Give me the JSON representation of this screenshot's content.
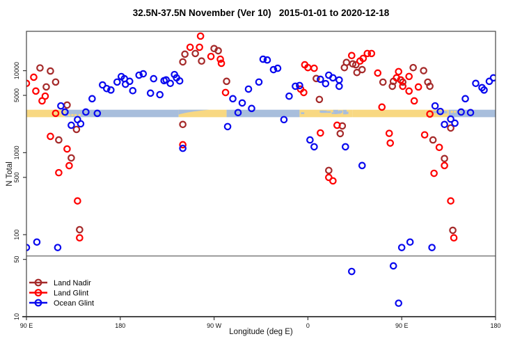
{
  "chart_data": {
    "type": "scatter",
    "title": "32.5N-37.5N November (Ver 10)   2015-01-01 to 2020-12-18",
    "xlabel": "Longitude (deg E)",
    "ylabel": "N Total",
    "x_axis": {
      "min": 90,
      "max": 540,
      "ticks": [
        {
          "value": 90,
          "label": "90 E"
        },
        {
          "value": 180,
          "label": "180"
        },
        {
          "value": 270,
          "label": "90 W"
        },
        {
          "value": 360,
          "label": "0"
        },
        {
          "value": 450,
          "label": "90 E"
        },
        {
          "value": 540,
          "label": "180"
        }
      ]
    },
    "y_axis": {
      "scale": "log",
      "min": 10,
      "max": 30200,
      "ticks": [
        {
          "value": 10,
          "label": "10"
        },
        {
          "value": 50,
          "label": "50"
        },
        {
          "value": 100,
          "label": "100"
        },
        {
          "value": 500,
          "label": "500"
        },
        {
          "value": 1000,
          "label": "1000"
        },
        {
          "value": 5000,
          "label": "5000"
        },
        {
          "value": 10000,
          "label": "10000"
        }
      ]
    },
    "ref_line_value": 55,
    "map_strip": {
      "top_value": 3340,
      "bottom_value": 2710,
      "land_color": "#F8D882",
      "ocean_color": "#A8BEDC",
      "segments": [
        {
          "from": 90,
          "to": 127,
          "type": "land"
        },
        {
          "from": 127,
          "to": 236,
          "type": "ocean"
        },
        {
          "from": 236,
          "to": 282,
          "type": "land",
          "coast_notch": true
        },
        {
          "from": 282,
          "to": 352,
          "type": "ocean"
        },
        {
          "from": 352,
          "to": 403,
          "type": "mixed"
        },
        {
          "from": 403,
          "to": 473,
          "type": "land"
        },
        {
          "from": 473,
          "to": 495,
          "type": "mixed"
        },
        {
          "from": 495,
          "to": 540,
          "type": "ocean"
        }
      ],
      "islands": [
        {
          "deg": 130,
          "row": "bottom"
        },
        {
          "deg": 133,
          "row": "bottom"
        },
        {
          "deg": 136,
          "row": "bottom"
        },
        {
          "deg": 140,
          "row": "bottom"
        },
        {
          "deg": 497,
          "row": "top"
        },
        {
          "deg": 500,
          "row": "top"
        },
        {
          "deg": 504,
          "row": "top"
        }
      ]
    },
    "legend": [
      {
        "name": "Land Nadir",
        "color": "#A52A2A"
      },
      {
        "name": "Land Glint",
        "color": "#FF0000"
      },
      {
        "name": "Ocean Glint",
        "color": "#0909EE"
      }
    ],
    "series": [
      {
        "name": "Land Nadir",
        "color": "#A52A2A",
        "points": [
          [
            103,
            10800
          ],
          [
            113,
            9900
          ],
          [
            118,
            7270
          ],
          [
            109,
            6340
          ],
          [
            129,
            3810
          ],
          [
            138,
            1920
          ],
          [
            121,
            1430
          ],
          [
            133,
            863
          ],
          [
            141,
            115
          ],
          [
            240,
            2210
          ],
          [
            242,
            15900
          ],
          [
            252,
            16200
          ],
          [
            240,
            12800
          ],
          [
            258,
            13100
          ],
          [
            270,
            18600
          ],
          [
            274,
            17500
          ],
          [
            282,
            7420
          ],
          [
            368,
            8020
          ],
          [
            371,
            4460
          ],
          [
            380,
            607
          ],
          [
            391,
            1710
          ],
          [
            393,
            2120
          ],
          [
            395,
            10900
          ],
          [
            397,
            12600
          ],
          [
            403,
            12100
          ],
          [
            406,
            11800
          ],
          [
            407,
            9500
          ],
          [
            412,
            10300
          ],
          [
            432,
            7250
          ],
          [
            441,
            6460
          ],
          [
            442,
            7400
          ],
          [
            451,
            7250
          ],
          [
            461,
            10900
          ],
          [
            471,
            10000
          ],
          [
            475,
            7250
          ],
          [
            477,
            6460
          ],
          [
            480,
            1430
          ],
          [
            491,
            848
          ],
          [
            497,
            2000
          ],
          [
            499,
            113
          ]
        ]
      },
      {
        "name": "Land Glint",
        "color": "#FF0000",
        "points": [
          [
            90,
            7000
          ],
          [
            97,
            8320
          ],
          [
            99,
            5640
          ],
          [
            105,
            4280
          ],
          [
            108,
            4890
          ],
          [
            113,
            1580
          ],
          [
            118,
            3020
          ],
          [
            121,
            570
          ],
          [
            129,
            1110
          ],
          [
            131,
            694
          ],
          [
            139,
            258
          ],
          [
            141,
            91.5
          ],
          [
            240,
            1250
          ],
          [
            247,
            19300
          ],
          [
            256,
            19300
          ],
          [
            257,
            26400
          ],
          [
            267,
            14900
          ],
          [
            276,
            13800
          ],
          [
            277,
            12300
          ],
          [
            281,
            5420
          ],
          [
            353,
            5960
          ],
          [
            356,
            5420
          ],
          [
            357,
            11800
          ],
          [
            360,
            10900
          ],
          [
            366,
            10700
          ],
          [
            372,
            1740
          ],
          [
            380,
            499
          ],
          [
            384,
            453
          ],
          [
            388,
            2160
          ],
          [
            402,
            15300
          ],
          [
            410,
            13100
          ],
          [
            413,
            14100
          ],
          [
            417,
            16200
          ],
          [
            421,
            16200
          ],
          [
            427,
            9360
          ],
          [
            431,
            3600
          ],
          [
            438,
            1720
          ],
          [
            439,
            1310
          ],
          [
            445,
            8180
          ],
          [
            447,
            9740
          ],
          [
            449,
            7720
          ],
          [
            451,
            6460
          ],
          [
            457,
            8500
          ],
          [
            457,
            5640
          ],
          [
            462,
            4280
          ],
          [
            466,
            6330
          ],
          [
            472,
            1650
          ],
          [
            477,
            2960
          ],
          [
            481,
            560
          ],
          [
            486,
            1160
          ],
          [
            491,
            697
          ],
          [
            497,
            258
          ],
          [
            500,
            91.5
          ]
        ]
      },
      {
        "name": "Ocean Glint",
        "color": "#0909EE",
        "points": [
          [
            90,
            69.7
          ],
          [
            100,
            81.3
          ],
          [
            120,
            69.7
          ],
          [
            123,
            3720
          ],
          [
            127,
            3130
          ],
          [
            133,
            2160
          ],
          [
            139,
            2530
          ],
          [
            142,
            2250
          ],
          [
            147,
            3130
          ],
          [
            153,
            4550
          ],
          [
            158,
            3020
          ],
          [
            163,
            6700
          ],
          [
            167,
            6050
          ],
          [
            171,
            5810
          ],
          [
            177,
            7270
          ],
          [
            181,
            8480
          ],
          [
            184,
            7980
          ],
          [
            185,
            6830
          ],
          [
            189,
            7420
          ],
          [
            192,
            5700
          ],
          [
            198,
            8810
          ],
          [
            202,
            9160
          ],
          [
            209,
            5320
          ],
          [
            212,
            7980
          ],
          [
            218,
            5100
          ],
          [
            222,
            7560
          ],
          [
            224,
            7720
          ],
          [
            228,
            7000
          ],
          [
            232,
            8970
          ],
          [
            234,
            8180
          ],
          [
            237,
            7500
          ],
          [
            240,
            1130
          ],
          [
            283,
            2080
          ],
          [
            288,
            4550
          ],
          [
            293,
            3080
          ],
          [
            297,
            4040
          ],
          [
            303,
            5960
          ],
          [
            306,
            3460
          ],
          [
            313,
            7270
          ],
          [
            317,
            13800
          ],
          [
            321,
            13500
          ],
          [
            327,
            10300
          ],
          [
            331,
            10700
          ],
          [
            337,
            2530
          ],
          [
            342,
            4890
          ],
          [
            348,
            6460
          ],
          [
            352,
            6590
          ],
          [
            362,
            1430
          ],
          [
            366,
            1180
          ],
          [
            372,
            7850
          ],
          [
            377,
            6950
          ],
          [
            380,
            8810
          ],
          [
            384,
            8180
          ],
          [
            390,
            7700
          ],
          [
            390,
            6460
          ],
          [
            396,
            1180
          ],
          [
            402,
            35.6
          ],
          [
            412,
            697
          ],
          [
            442,
            41.6
          ],
          [
            447,
            14.6
          ],
          [
            450,
            69.7
          ],
          [
            458,
            81.3
          ],
          [
            479,
            69.7
          ],
          [
            482,
            3720
          ],
          [
            487,
            3180
          ],
          [
            491,
            2210
          ],
          [
            497,
            2570
          ],
          [
            501,
            2290
          ],
          [
            507,
            3130
          ],
          [
            511,
            4550
          ],
          [
            516,
            3080
          ],
          [
            521,
            7000
          ],
          [
            527,
            6210
          ],
          [
            529,
            5810
          ],
          [
            534,
            7420
          ],
          [
            538,
            8180
          ]
        ]
      }
    ],
    "frame_color": "#444444",
    "marker": {
      "radius": 4.2,
      "stroke_width": 2.2
    }
  }
}
